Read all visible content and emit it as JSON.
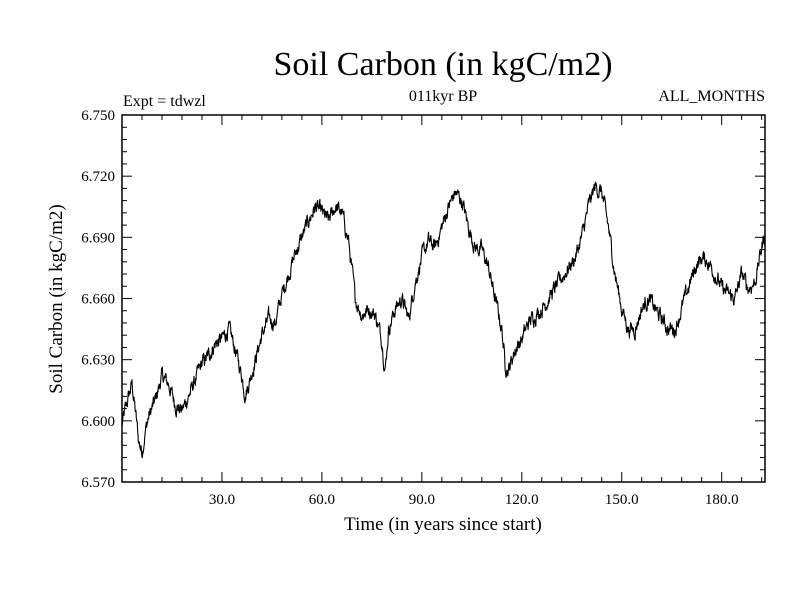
{
  "chart_data": {
    "type": "line",
    "title": "Soil Carbon (in kgC/m2)",
    "subtitle": "011kyr BP",
    "annotation_left": "Expt = tdwzl",
    "annotation_right": "ALL_MONTHS",
    "xlabel": "Time (in years since start)",
    "ylabel": "Soil Carbon (in kgC/m2)",
    "xlim": [
      0,
      193
    ],
    "ylim": [
      6.57,
      6.75
    ],
    "x_ticks": [
      30,
      60,
      90,
      120,
      150,
      180
    ],
    "x_tick_labels": [
      "30.0",
      "60.0",
      "90.0",
      "120.0",
      "150.0",
      "180.0"
    ],
    "y_ticks": [
      6.57,
      6.6,
      6.63,
      6.66,
      6.69,
      6.72,
      6.75
    ],
    "y_tick_labels": [
      "6.570",
      "6.600",
      "6.630",
      "6.660",
      "6.690",
      "6.720",
      "6.750"
    ],
    "series": [
      {
        "name": "Soil Carbon",
        "color": "#000000",
        "x": [
          0,
          1,
          2,
          3,
          4,
          5,
          6,
          7,
          8,
          10,
          12,
          14,
          16,
          18,
          20,
          22,
          24,
          26,
          28,
          30,
          32,
          34,
          36,
          37,
          38,
          40,
          42,
          44,
          46,
          48,
          50,
          52,
          54,
          56,
          58,
          60,
          62,
          64,
          66,
          68,
          70,
          72,
          74,
          76,
          78,
          79,
          80,
          82,
          84,
          86,
          88,
          90,
          92,
          94,
          96,
          98,
          100,
          102,
          104,
          106,
          108,
          110,
          112,
          114,
          115,
          116,
          118,
          120,
          122,
          124,
          126,
          128,
          130,
          132,
          134,
          136,
          138,
          140,
          142,
          144,
          146,
          148,
          150,
          152,
          154,
          156,
          158,
          160,
          162,
          164,
          166,
          168,
          170,
          172,
          174,
          176,
          178,
          180,
          182,
          184,
          186,
          188,
          190,
          192,
          193
        ],
        "y": [
          6.598,
          6.605,
          6.612,
          6.618,
          6.605,
          6.59,
          6.585,
          6.595,
          6.602,
          6.61,
          6.622,
          6.618,
          6.608,
          6.605,
          6.612,
          6.62,
          6.628,
          6.632,
          6.638,
          6.64,
          6.645,
          6.635,
          6.622,
          6.613,
          6.618,
          6.63,
          6.642,
          6.65,
          6.648,
          6.662,
          6.672,
          6.682,
          6.69,
          6.698,
          6.705,
          6.702,
          6.698,
          6.705,
          6.702,
          6.688,
          6.66,
          6.652,
          6.655,
          6.652,
          6.64,
          6.625,
          6.645,
          6.655,
          6.66,
          6.65,
          6.668,
          6.68,
          6.688,
          6.685,
          6.695,
          6.705,
          6.712,
          6.708,
          6.695,
          6.685,
          6.684,
          6.675,
          6.66,
          6.645,
          6.628,
          6.625,
          6.635,
          6.64,
          6.648,
          6.652,
          6.655,
          6.66,
          6.665,
          6.67,
          6.675,
          6.68,
          6.69,
          6.705,
          6.715,
          6.712,
          6.695,
          6.672,
          6.655,
          6.645,
          6.645,
          6.655,
          6.66,
          6.655,
          6.65,
          6.645,
          6.645,
          6.655,
          6.665,
          6.675,
          6.68,
          6.678,
          6.672,
          6.665,
          6.662,
          6.66,
          6.672,
          6.665,
          6.668,
          6.685,
          6.692
        ]
      }
    ]
  }
}
